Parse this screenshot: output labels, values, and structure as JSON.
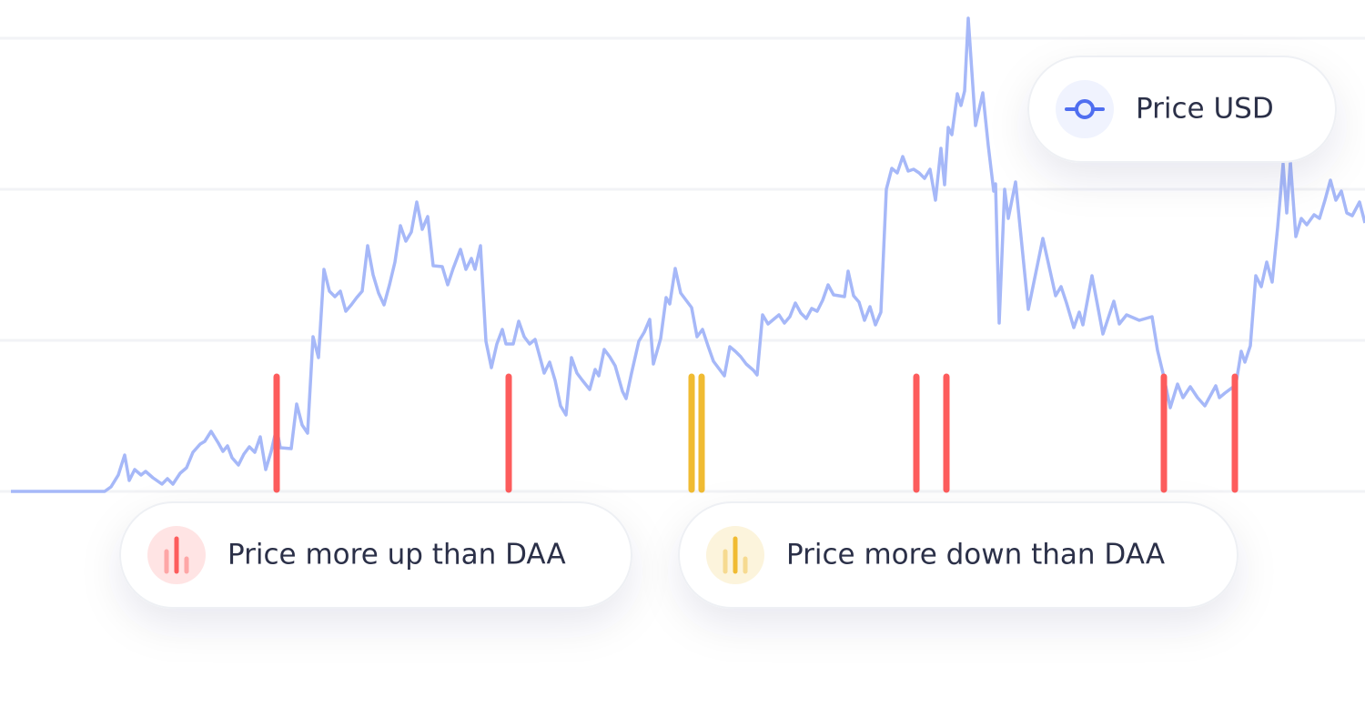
{
  "chart_data": {
    "type": "line",
    "xlim": [
      0,
      1488
    ],
    "ylim": [
      0,
      520
    ],
    "series": [
      {
        "name": "Price USD",
        "color": "#a6b8f8",
        "x": [
          0,
          103,
          110,
          118,
          125,
          130,
          136,
          143,
          148,
          156,
          166,
          172,
          178,
          186,
          193,
          200,
          208,
          213,
          220,
          228,
          233,
          238,
          243,
          250,
          256,
          262,
          268,
          274,
          280,
          286,
          292,
          296,
          308,
          314,
          320,
          326,
          332,
          338,
          344,
          350,
          356,
          362,
          368,
          374,
          380,
          386,
          392,
          398,
          404,
          410,
          416,
          422,
          428,
          434,
          440,
          446,
          452,
          458,
          464,
          474,
          480,
          486,
          494,
          500,
          506,
          510,
          516,
          522,
          528,
          534,
          540,
          544,
          552,
          558,
          564,
          570,
          576,
          582,
          586,
          592,
          598,
          604,
          610,
          616,
          622,
          628,
          636,
          642,
          646,
          652,
          658,
          664,
          672,
          676,
          682,
          690,
          696,
          702,
          706,
          714,
          720,
          724,
          730,
          736,
          742,
          748,
          754,
          760,
          766,
          772,
          778,
          784,
          790,
          796,
          802,
          808,
          816,
          820,
          826,
          832,
          838,
          844,
          850,
          856,
          862,
          868,
          874,
          880,
          886,
          892,
          898,
          904,
          910,
          916,
          920,
          926,
          932,
          938,
          944,
          950,
          956,
          962,
          968,
          974,
          980,
          986,
          992,
          998,
          1004,
          1010,
          1016,
          1022,
          1026,
          1030,
          1034,
          1040,
          1044,
          1048,
          1052,
          1060,
          1068,
          1074,
          1080,
          1082,
          1086,
          1092,
          1096,
          1104,
          1118,
          1134,
          1148,
          1154,
          1160,
          1168,
          1174,
          1178,
          1188,
          1200,
          1212,
          1218,
          1226,
          1240,
          1254,
          1260,
          1266,
          1274,
          1282,
          1288,
          1296,
          1304,
          1312,
          1318,
          1324,
          1328,
          1334,
          1346,
          1352,
          1356,
          1362,
          1368,
          1374,
          1380,
          1386,
          1392,
          1398,
          1402,
          1406,
          1412,
          1418,
          1424,
          1432,
          1438,
          1444,
          1450,
          1456,
          1462,
          1468,
          1474,
          1482,
          1488
        ],
        "values": [
          0,
          0,
          5,
          18,
          40,
          12,
          24,
          18,
          22,
          15,
          8,
          14,
          8,
          20,
          26,
          43,
          52,
          55,
          66,
          53,
          44,
          50,
          37,
          29,
          41,
          49,
          43,
          60,
          24,
          44,
          70,
          48,
          47,
          96,
          73,
          64,
          170,
          147,
          244,
          220,
          214,
          220,
          198,
          205,
          213,
          220,
          270,
          238,
          218,
          205,
          227,
          252,
          292,
          275,
          285,
          318,
          288,
          302,
          248,
          247,
          227,
          245,
          266,
          244,
          256,
          244,
          270,
          165,
          136,
          162,
          178,
          162,
          162,
          187,
          170,
          162,
          167,
          145,
          130,
          142,
          122,
          94,
          84,
          147,
          130,
          122,
          112,
          134,
          127,
          156,
          148,
          138,
          110,
          102,
          130,
          165,
          175,
          189,
          140,
          168,
          213,
          206,
          245,
          218,
          210,
          202,
          170,
          178,
          160,
          143,
          135,
          127,
          159,
          154,
          148,
          140,
          133,
          128,
          194,
          184,
          189,
          194,
          185,
          192,
          207,
          196,
          190,
          201,
          198,
          210,
          227,
          216,
          215,
          214,
          242,
          215,
          208,
          188,
          203,
          183,
          197,
          332,
          355,
          350,
          368,
          352,
          354,
          350,
          344,
          354,
          320,
          377,
          337,
          400,
          392,
          437,
          424,
          440,
          520,
          402,
          438,
          380,
          330,
          338,
          185,
          332,
          300,
          340,
          200,
          278,
          215,
          225,
          207,
          180,
          197,
          183,
          237,
          173,
          209,
          184,
          194,
          188,
          192,
          155,
          130,
          92,
          118,
          103,
          115,
          103,
          94,
          105,
          116,
          103,
          108,
          117,
          154,
          142,
          160,
          237,
          225,
          252,
          230,
          290,
          360,
          306,
          362,
          280,
          300,
          293,
          304,
          300,
          320,
          342,
          320,
          330,
          306,
          303,
          318,
          295
        ]
      },
      {
        "name": "Price more up than DAA",
        "color": "#fd5c5c",
        "x": [
          292,
          547,
          995,
          1028,
          1267,
          1345
        ],
        "values": [
          128,
          128,
          128,
          128,
          128,
          128
        ]
      },
      {
        "name": "Price more down than DAA",
        "color": "#f0bb32",
        "x": [
          748,
          759
        ],
        "values": [
          128,
          128
        ]
      }
    ]
  }
}
